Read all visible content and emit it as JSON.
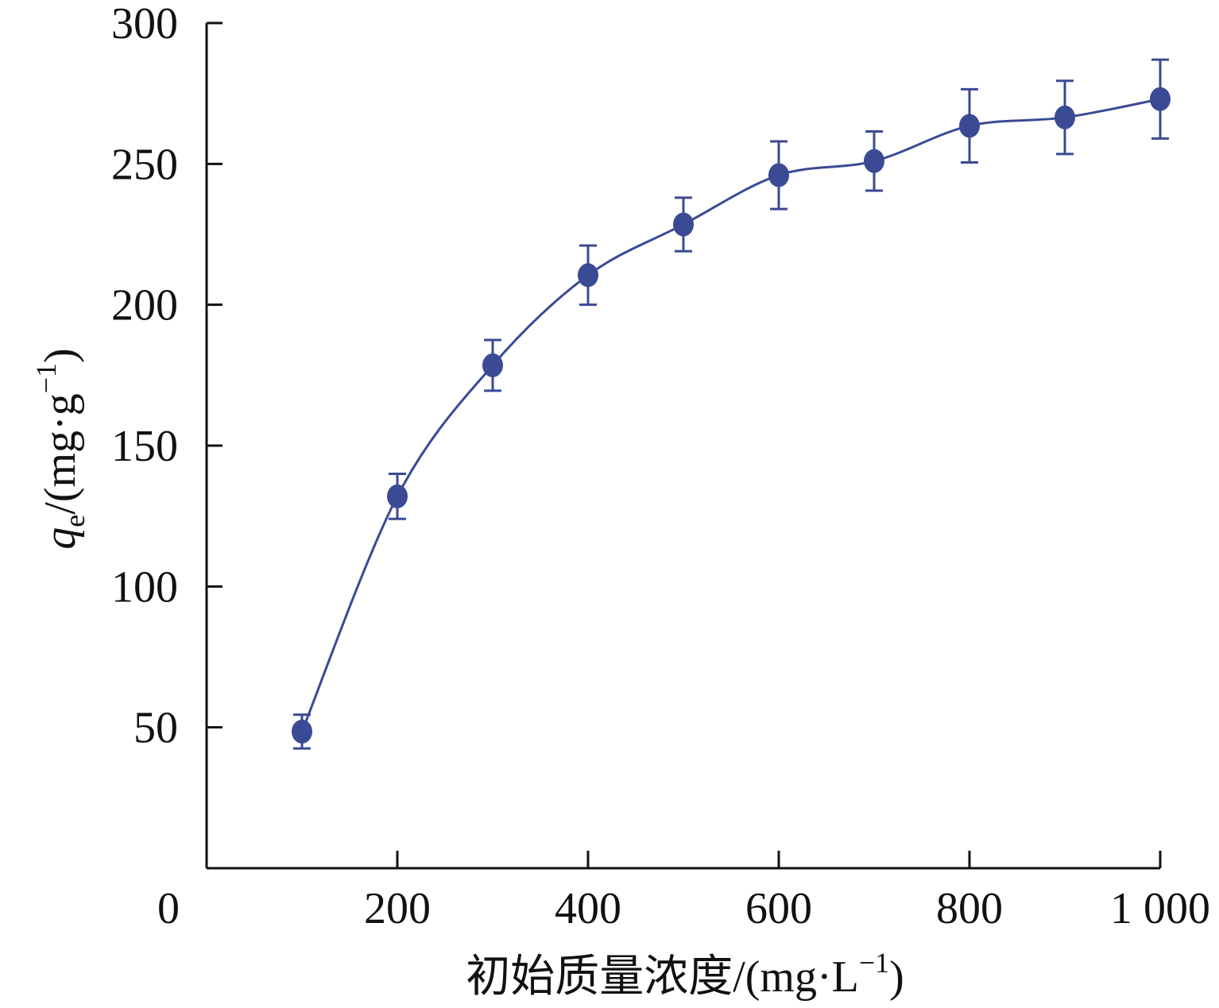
{
  "chart_data": {
    "type": "scatter",
    "title": "",
    "xlabel": "初始质量浓度/(mg·L−1)",
    "xlabel_parts": {
      "main": "初始质量浓度/(mg·L",
      "sup": "−1",
      "close": ")"
    },
    "ylabel": "qe/(mg·g−1)",
    "ylabel_parts": {
      "var": "q",
      "sub": "e",
      "main": "/(mg·g",
      "sup": "−1",
      "close": ")"
    },
    "xlim": [
      0,
      1000
    ],
    "ylim": [
      0,
      300
    ],
    "x_ticks": [
      200,
      400,
      600,
      800,
      1000
    ],
    "x_tick_labels": [
      "200",
      "400",
      "600",
      "800",
      "1 000"
    ],
    "y_ticks": [
      50,
      100,
      150,
      200,
      250,
      300
    ],
    "y_tick_labels": [
      "50",
      "100",
      "150",
      "200",
      "250",
      "300"
    ],
    "origin_label": "0",
    "grid": false,
    "legend": "none",
    "series": [
      {
        "x": [
          100,
          200,
          300,
          400,
          500,
          600,
          700,
          800,
          900,
          1000
        ],
        "y": [
          48.5,
          132,
          178.5,
          210.5,
          228.5,
          246,
          251,
          263.5,
          266.5,
          273
        ],
        "error": [
          6,
          8,
          9,
          10.5,
          9.5,
          12,
          10.5,
          13,
          13,
          14
        ],
        "fit_line": true
      }
    ],
    "colors": {
      "series": "#3b4a94",
      "axis": "#111111"
    }
  }
}
